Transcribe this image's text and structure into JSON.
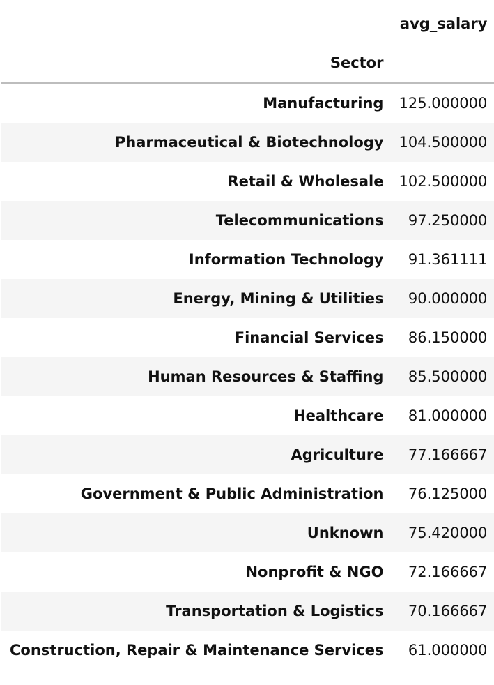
{
  "table": {
    "column_header": "avg_salary",
    "index_name": "Sector"
  },
  "chart_data": {
    "type": "table",
    "columns": [
      "avg_salary"
    ],
    "index_name": "Sector",
    "rows": [
      {
        "sector": "Manufacturing",
        "avg_salary": "125.000000"
      },
      {
        "sector": "Pharmaceutical & Biotechnology",
        "avg_salary": "104.500000"
      },
      {
        "sector": "Retail & Wholesale",
        "avg_salary": "102.500000"
      },
      {
        "sector": "Telecommunications",
        "avg_salary": "97.250000"
      },
      {
        "sector": "Information Technology",
        "avg_salary": "91.361111"
      },
      {
        "sector": "Energy, Mining & Utilities",
        "avg_salary": "90.000000"
      },
      {
        "sector": "Financial Services",
        "avg_salary": "86.150000"
      },
      {
        "sector": "Human Resources & Staffing",
        "avg_salary": "85.500000"
      },
      {
        "sector": "Healthcare",
        "avg_salary": "81.000000"
      },
      {
        "sector": "Agriculture",
        "avg_salary": "77.166667"
      },
      {
        "sector": "Government & Public Administration",
        "avg_salary": "76.125000"
      },
      {
        "sector": "Unknown",
        "avg_salary": "75.420000"
      },
      {
        "sector": "Nonprofit & NGO",
        "avg_salary": "72.166667"
      },
      {
        "sector": "Transportation & Logistics",
        "avg_salary": "70.166667"
      },
      {
        "sector": "Construction, Repair & Maintenance Services",
        "avg_salary": "61.000000"
      }
    ]
  }
}
